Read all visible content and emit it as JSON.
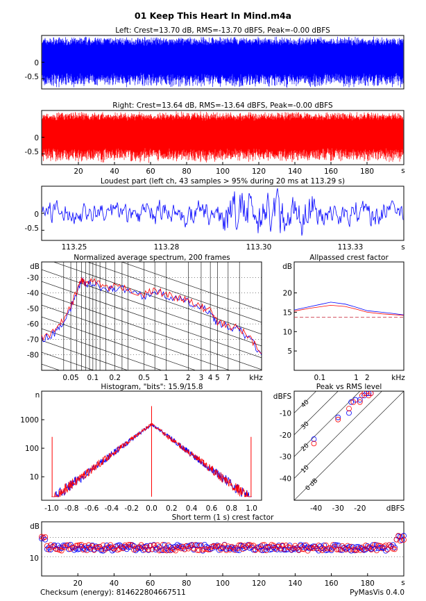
{
  "figure": {
    "title": "01 Keep This Heart In Mind.m4a",
    "checksum": "Checksum (energy): 814622804667511",
    "version": "PyMasVis 0.4.0"
  },
  "colors": {
    "left": "#0000ff",
    "right": "#ff0000",
    "grid": "#000000",
    "background": "#ffffff"
  },
  "chart_data": [
    {
      "id": "left",
      "type": "line",
      "title": "Left: Crest=13.70 dB, RMS=-13.70 dBFS, Peak=-0.00 dBFS",
      "yticks": [
        "0",
        "-0.5"
      ],
      "ytick_values": [
        0,
        -0.5
      ],
      "ylim": [
        -0.8,
        0.8
      ],
      "xlim": [
        0,
        200
      ]
    },
    {
      "id": "right",
      "type": "line",
      "title": "Right: Crest=13.64 dB, RMS=-13.64 dBFS, Peak=-0.00 dBFS",
      "yticks": [
        "0",
        "-0.5"
      ],
      "ytick_values": [
        0,
        -0.5
      ],
      "xticks": [
        "20",
        "40",
        "60",
        "80",
        "100",
        "120",
        "140",
        "160",
        "180"
      ],
      "xtick_values": [
        20,
        40,
        60,
        80,
        100,
        120,
        140,
        160,
        180
      ],
      "xunit": "s",
      "ylim": [
        -0.8,
        0.8
      ],
      "xlim": [
        0,
        200
      ]
    },
    {
      "id": "loudest",
      "type": "line",
      "title": "Loudest part (left ch, 43 samples > 95% during 20 ms at 113.29 s)",
      "yticks": [
        "0",
        "-0.5"
      ],
      "ytick_values": [
        0,
        -0.5
      ],
      "xticks": [
        "113.25",
        "113.28",
        "113.30",
        "113.33"
      ],
      "xtick_values": [
        113.25,
        113.275,
        113.3,
        113.325
      ],
      "xunit": "s",
      "xlim": [
        113.23,
        113.35
      ],
      "ylim": [
        -0.8,
        0.8
      ]
    },
    {
      "id": "spectrum",
      "type": "line",
      "title": "Normalized average spectrum, 200 frames",
      "ylabel": "dB",
      "yticks": [
        "-30",
        "-40",
        "-50",
        "-60",
        "-70",
        "-80"
      ],
      "ytick_values": [
        -30,
        -40,
        -50,
        -60,
        -70,
        -80
      ],
      "xticks": [
        "0.05",
        "0.1",
        "0.2",
        "0.5",
        "1",
        "2",
        "3",
        "4",
        "5",
        "7"
      ],
      "xtick_values": [
        0.05,
        0.1,
        0.2,
        0.5,
        1,
        2,
        3,
        4,
        5,
        7
      ],
      "xunit": "kHz",
      "xscale": "log",
      "xlim": [
        0.02,
        20
      ],
      "ylim": [
        -90,
        -20
      ],
      "curve_x": [
        0.02,
        0.03,
        0.04,
        0.05,
        0.06,
        0.07,
        0.08,
        0.1,
        0.15,
        0.2,
        0.3,
        0.5,
        0.7,
        1,
        1.5,
        2,
        3,
        4,
        5,
        7,
        10,
        14,
        20
      ],
      "curve_y": [
        -70,
        -66,
        -58,
        -50,
        -40,
        -32,
        -35,
        -33,
        -38,
        -37,
        -38,
        -42,
        -39,
        -42,
        -44,
        -46,
        -50,
        -52,
        -60,
        -62,
        -64,
        -70,
        -80
      ]
    },
    {
      "id": "allpass",
      "type": "line",
      "title": "Allpassed crest factor",
      "ylabel": "dB",
      "yticks": [
        "20",
        "15",
        "10",
        "5"
      ],
      "ytick_values": [
        20,
        15,
        10,
        5
      ],
      "xticks": [
        "0.1",
        "1",
        "2"
      ],
      "xtick_values": [
        0.1,
        1,
        2
      ],
      "xunit": "kHz",
      "xscale": "log",
      "xlim": [
        0.02,
        20
      ],
      "ylim": [
        0,
        28
      ],
      "x": [
        0.02,
        0.05,
        0.1,
        0.2,
        0.5,
        1,
        2,
        5,
        10,
        20
      ],
      "series": [
        {
          "color": "#0000ff",
          "values": [
            15.6,
            16.4,
            17.0,
            17.6,
            17.1,
            16.3,
            15.4,
            15.0,
            14.7,
            14.3
          ]
        },
        {
          "color": "#ff0000",
          "values": [
            15.3,
            16.0,
            16.4,
            16.8,
            16.5,
            15.8,
            15.0,
            14.6,
            14.4,
            14.2
          ]
        }
      ],
      "reference_dashed": 13.7
    },
    {
      "id": "histogram",
      "type": "line",
      "title": "Histogram, \"bits\": 15.9/15.8",
      "ylabel": "n",
      "yticks": [
        "1000",
        "100",
        "10"
      ],
      "ytick_values": [
        1000,
        100,
        10
      ],
      "xticks": [
        "-1.0",
        "-0.8",
        "-0.6",
        "-0.4",
        "-0.2",
        "0.0",
        "0.2",
        "0.4",
        "0.6",
        "0.8",
        "1.0"
      ],
      "xtick_values": [
        -1.0,
        -0.8,
        -0.6,
        -0.4,
        -0.2,
        0.0,
        0.2,
        0.4,
        0.6,
        0.8,
        1.0
      ],
      "yscale": "log",
      "xlim": [
        -1.1,
        1.1
      ],
      "ylim": [
        1.5,
        10000
      ],
      "peak": 700,
      "center_spike": 3000,
      "edge_spike": 250
    },
    {
      "id": "peakrms",
      "type": "scatter",
      "title": "Peak vs RMS level",
      "ylabel": "dBFS",
      "xlabel": "dBFS",
      "yticks": [
        "-10",
        "-20",
        "-30",
        "-40"
      ],
      "ytick_values": [
        -10,
        -20,
        -30,
        -40
      ],
      "xticks": [
        "-40",
        "-30",
        "-20"
      ],
      "xtick_values": [
        -40,
        -30,
        -20
      ],
      "xlim": [
        -50,
        0
      ],
      "ylim": [
        -50,
        0
      ],
      "diagonal_labels": [
        "40",
        "30",
        "20",
        "10",
        "0 dB"
      ],
      "diagonal_offsets": [
        40,
        30,
        20,
        10,
        0
      ],
      "left_points": [
        [
          -41,
          -22
        ],
        [
          -30,
          -12
        ],
        [
          -25,
          -10
        ],
        [
          -24,
          -5
        ],
        [
          -22,
          -4
        ],
        [
          -20,
          -4
        ],
        [
          -18,
          -2
        ],
        [
          -17,
          -1
        ],
        [
          -16,
          -1
        ],
        [
          -15,
          -1
        ]
      ],
      "right_points": [
        [
          -41,
          -24
        ],
        [
          -30,
          -13
        ],
        [
          -25,
          -8
        ],
        [
          -23,
          -5
        ],
        [
          -20,
          -5
        ],
        [
          -19,
          -2
        ],
        [
          -18,
          -1
        ],
        [
          -16,
          -2
        ],
        [
          -15,
          -1
        ]
      ]
    },
    {
      "id": "shortcrest",
      "type": "scatter",
      "title": "Short term (1 s) crest factor",
      "ylabel": "dB",
      "yticks": [
        "10"
      ],
      "ytick_values": [
        10
      ],
      "xticks": [
        "20",
        "40",
        "60",
        "80",
        "100",
        "120",
        "140",
        "160",
        "180"
      ],
      "xtick_values": [
        20,
        40,
        60,
        80,
        100,
        120,
        140,
        160,
        180
      ],
      "xunit": "s",
      "xlim": [
        0,
        200
      ],
      "ylim": [
        5,
        19
      ],
      "grid_dashed": [
        10,
        15
      ],
      "level": 12.3
    }
  ]
}
